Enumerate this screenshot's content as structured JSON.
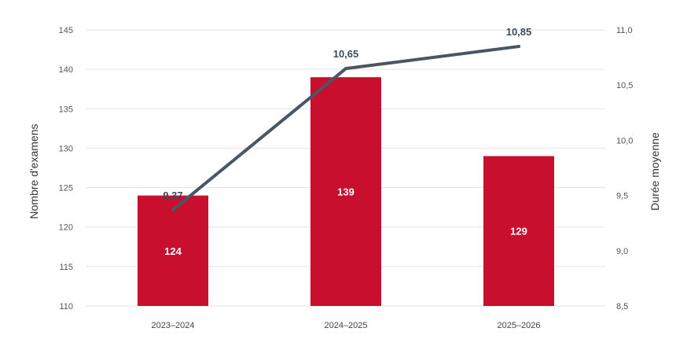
{
  "chart_data": {
    "type": "bar",
    "categories": [
      "2023–2024",
      "2024–2025",
      "2025–2026"
    ],
    "series": [
      {
        "values": [
          124,
          139,
          129
        ],
        "value_labels": [
          "124",
          "139",
          "129"
        ],
        "axis": "left",
        "color": "#c8102e"
      },
      {
        "type": "line",
        "values": [
          9.37,
          10.65,
          10.85
        ],
        "value_labels": [
          "9,37",
          "10,65",
          "10,85"
        ],
        "axis": "right",
        "color": "#4a5664"
      }
    ],
    "ylabel": "Nombre d'examens",
    "y2label": "Durée moyenne",
    "ylim": [
      110,
      145
    ],
    "y2lim": [
      8.5,
      11.0
    ],
    "yticks": [
      "110",
      "115",
      "120",
      "125",
      "130",
      "135",
      "140",
      "145"
    ],
    "y2ticks": [
      "8,5",
      "9,0",
      "9,5",
      "10,0",
      "10,5",
      "11,0"
    ],
    "grid": true
  }
}
